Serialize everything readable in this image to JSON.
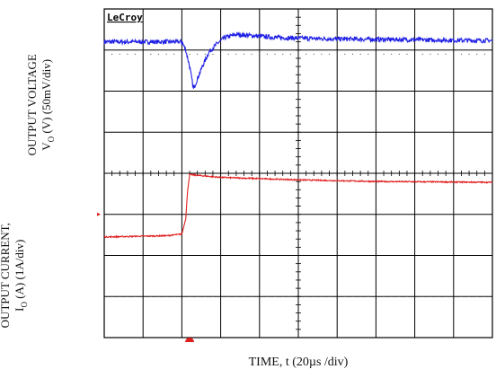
{
  "chart_data": {
    "type": "line",
    "logo": "LeCroy",
    "xlabel": "TIME, t (20µs /div)",
    "ylabels": [
      {
        "line1": "OUTPUT VOLTAGE",
        "line2_main": "V",
        "line2_sub": "O",
        "line2_rest": " (V) (50mV/div)"
      },
      {
        "line1": "OUTPUT CURRENT,",
        "line2_main": "I",
        "line2_sub": "O",
        "line2_rest": " (A)  (1A/div)"
      }
    ],
    "x_divisions": 10,
    "y_divisions": 8,
    "xlim_div": [
      0,
      10
    ],
    "ylim_div": [
      0,
      8
    ],
    "grid": true,
    "trigger_marker_x_div": 2.2,
    "series": [
      {
        "color": "#1f1fe6",
        "x_div": [
          0,
          2.0,
          2.1,
          2.2,
          2.3,
          2.4,
          2.55,
          2.7,
          2.9,
          3.1,
          3.4,
          3.8,
          4.5,
          6,
          8,
          10
        ],
        "y_div": [
          7.2,
          7.2,
          7.0,
          6.6,
          6.05,
          6.3,
          6.65,
          6.95,
          7.15,
          7.3,
          7.38,
          7.35,
          7.3,
          7.27,
          7.25,
          7.23
        ]
      },
      {
        "color": "#e01f1f",
        "x_div": [
          0,
          1.6,
          2.0,
          2.1,
          2.15,
          2.2,
          2.4,
          3,
          5,
          7,
          10
        ],
        "y_div": [
          2.45,
          2.48,
          2.52,
          2.9,
          3.6,
          3.97,
          3.95,
          3.9,
          3.84,
          3.8,
          3.78
        ]
      }
    ],
    "ch_markers": [
      {
        "color": "#e01f1f",
        "y_div": 3.0
      }
    ]
  }
}
